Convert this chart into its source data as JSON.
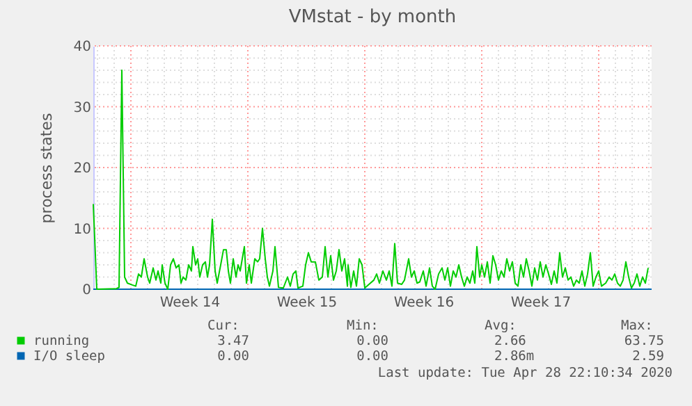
{
  "chart_data": {
    "type": "line",
    "title": "VMstat - by month",
    "ylabel": "process states",
    "xlim": [
      "2020-03-27T18:00",
      "2020-04-30T04:00"
    ],
    "ylim": [
      0,
      40
    ],
    "xticks": [
      {
        "value": "2020-03-28",
        "label": null
      },
      {
        "value": "2020-03-29",
        "label": null
      },
      {
        "value": "2020-03-31",
        "label": null
      },
      {
        "value": "2020-04-01",
        "label": null
      },
      {
        "value": "2020-04-02",
        "label": null
      },
      {
        "value": "2020-04-02T12:00",
        "label": "Week 14"
      },
      {
        "value": "2020-04-03",
        "label": null
      },
      {
        "value": "2020-04-04",
        "label": null
      },
      {
        "value": "2020-04-05",
        "label": null
      },
      {
        "value": "2020-04-07",
        "label": null
      },
      {
        "value": "2020-04-08",
        "label": null
      },
      {
        "value": "2020-04-09",
        "label": null
      },
      {
        "value": "2020-04-09T12:00",
        "label": "Week 15"
      },
      {
        "value": "2020-04-10",
        "label": null
      },
      {
        "value": "2020-04-11",
        "label": null
      },
      {
        "value": "2020-04-12",
        "label": null
      },
      {
        "value": "2020-04-14",
        "label": null
      },
      {
        "value": "2020-04-15",
        "label": null
      },
      {
        "value": "2020-04-16",
        "label": null
      },
      {
        "value": "2020-04-16T12:00",
        "label": "Week 16"
      },
      {
        "value": "2020-04-17",
        "label": null
      },
      {
        "value": "2020-04-18",
        "label": null
      },
      {
        "value": "2020-04-19",
        "label": null
      },
      {
        "value": "2020-04-21",
        "label": null
      },
      {
        "value": "2020-04-22",
        "label": null
      },
      {
        "value": "2020-04-23",
        "label": null
      },
      {
        "value": "2020-04-23T12:00",
        "label": "Week 17"
      },
      {
        "value": "2020-04-24",
        "label": null
      },
      {
        "value": "2020-04-25",
        "label": null
      },
      {
        "value": "2020-04-26",
        "label": null
      },
      {
        "value": "2020-04-28",
        "label": null
      },
      {
        "value": "2020-04-29",
        "label": null
      },
      {
        "value": "2020-04-30",
        "label": null
      }
    ],
    "yticks": [
      0,
      {
        "value": 2,
        "label": null
      },
      {
        "value": 4,
        "label": null
      },
      {
        "value": 6,
        "label": null
      },
      {
        "value": 8,
        "label": null
      },
      10,
      {
        "value": 12,
        "label": null
      },
      {
        "value": 14,
        "label": null
      },
      {
        "value": 16,
        "label": null
      },
      {
        "value": 18,
        "label": null
      },
      20,
      {
        "value": 22,
        "label": null
      },
      {
        "value": 24,
        "label": null
      },
      {
        "value": 26,
        "label": null
      },
      {
        "value": 28,
        "label": null
      },
      30,
      {
        "value": 32,
        "label": null
      },
      {
        "value": 34,
        "label": null
      },
      {
        "value": 36,
        "label": null
      },
      {
        "value": 38,
        "label": null
      },
      40
    ],
    "ref_lines": [
      {
        "axis": "x",
        "value": "2020-03-30",
        "color": "#ff9999",
        "line_style": "dotted"
      },
      {
        "axis": "x",
        "value": "2020-04-06",
        "color": "#ff9999",
        "line_style": "dotted"
      },
      {
        "axis": "x",
        "value": "2020-04-13",
        "color": "#ff9999",
        "line_style": "dotted"
      },
      {
        "axis": "x",
        "value": "2020-04-20",
        "color": "#ff9999",
        "line_style": "dotted"
      },
      {
        "axis": "x",
        "value": "2020-04-27",
        "color": "#ff9999",
        "line_style": "dotted"
      }
    ],
    "grid": true,
    "legend": "bottom",
    "marker": "none",
    "line_style": "solid",
    "series": [
      {
        "name": "running",
        "color": "#00cc00",
        "x": [
          "2020-03-27T18:00",
          "2020-03-27T23:00",
          "2020-03-29T03:00",
          "2020-03-29T07:00",
          "2020-03-29T11:00",
          "2020-03-29T15:00",
          "2020-03-29T19:00",
          "2020-03-30T02:00",
          "2020-03-30T07:00",
          "2020-03-30T11:00",
          "2020-03-30T15:00",
          "2020-03-30T19:00",
          "2020-03-31T00:00",
          "2020-03-31T03:00",
          "2020-03-31T08:00",
          "2020-03-31T12:00",
          "2020-03-31T15:00",
          "2020-03-31T19:00",
          "2020-03-31T21:00",
          "2020-04-01T01:00",
          "2020-04-01T05:00",
          "2020-04-01T09:00",
          "2020-04-01T13:00",
          "2020-04-01T17:00",
          "2020-04-01T21:00",
          "2020-04-02T00:00",
          "2020-04-02T03:00",
          "2020-04-02T07:00",
          "2020-04-02T11:00",
          "2020-04-02T15:00",
          "2020-04-02T17:00",
          "2020-04-02T21:00",
          "2020-04-03T00:00",
          "2020-04-03T03:00",
          "2020-04-03T07:00",
          "2020-04-03T11:00",
          "2020-04-03T14:00",
          "2020-04-03T17:00",
          "2020-04-03T21:00",
          "2020-04-04T01:00",
          "2020-04-04T04:00",
          "2020-04-04T09:00",
          "2020-04-04T13:00",
          "2020-04-04T17:00",
          "2020-04-04T20:00",
          "2020-04-04T23:00",
          "2020-04-05T03:00",
          "2020-04-05T07:00",
          "2020-04-05T10:00",
          "2020-04-05T13:00",
          "2020-04-05T19:00",
          "2020-04-05T22:00",
          "2020-04-06T02:00",
          "2020-04-06T05:00",
          "2020-04-06T10:00",
          "2020-04-06T14:00",
          "2020-04-06T17:00",
          "2020-04-06T21:00",
          "2020-04-07T01:00",
          "2020-04-07T04:00",
          "2020-04-07T07:00",
          "2020-04-07T12:00",
          "2020-04-07T15:00",
          "2020-04-07T20:00",
          "2020-04-08T03:00",
          "2020-04-08T09:00",
          "2020-04-08T13:00",
          "2020-04-08T17:00",
          "2020-04-08T21:00",
          "2020-04-09T00:00",
          "2020-04-09T07:00",
          "2020-04-09T11:00",
          "2020-04-09T15:00",
          "2020-04-09T19:00",
          "2020-04-10T01:00",
          "2020-04-10T06:00",
          "2020-04-10T11:00",
          "2020-04-10T15:00",
          "2020-04-10T19:00",
          "2020-04-10T23:00",
          "2020-04-11T03:00",
          "2020-04-11T07:00",
          "2020-04-11T11:00",
          "2020-04-11T15:00",
          "2020-04-11T19:00",
          "2020-04-11T23:00",
          "2020-04-12T00:00",
          "2020-04-12T04:00",
          "2020-04-12T08:00",
          "2020-04-12T12:00",
          "2020-04-12T16:00",
          "2020-04-12T20:00",
          "2020-04-13T00:00",
          "2020-04-13T06:00",
          "2020-04-13T13:00",
          "2020-04-13T17:00",
          "2020-04-13T21:00",
          "2020-04-14T02:00",
          "2020-04-14T07:00",
          "2020-04-14T11:00",
          "2020-04-14T15:00",
          "2020-04-14T19:00",
          "2020-04-14T23:00",
          "2020-04-15T05:00",
          "2020-04-15T09:00",
          "2020-04-15T15:00",
          "2020-04-15T19:00",
          "2020-04-15T23:00",
          "2020-04-16T03:00",
          "2020-04-16T07:00",
          "2020-04-16T12:00",
          "2020-04-16T16:00",
          "2020-04-16T21:00",
          "2020-04-17T01:00",
          "2020-04-17T05:00",
          "2020-04-17T10:00",
          "2020-04-17T15:00",
          "2020-04-17T19:00",
          "2020-04-17T23:00",
          "2020-04-18T03:00",
          "2020-04-18T07:00",
          "2020-04-18T11:00",
          "2020-04-18T15:00",
          "2020-04-18T19:00",
          "2020-04-18T23:00",
          "2020-04-19T03:00",
          "2020-04-19T07:00",
          "2020-04-19T11:00",
          "2020-04-19T14:00",
          "2020-04-19T17:00",
          "2020-04-19T21:00",
          "2020-04-20T00:00",
          "2020-04-20T04:00",
          "2020-04-20T08:00",
          "2020-04-20T12:00",
          "2020-04-20T16:00",
          "2020-04-20T20:00",
          "2020-04-21T00:00",
          "2020-04-21T04:00",
          "2020-04-21T08:00",
          "2020-04-21T12:00",
          "2020-04-21T16:00",
          "2020-04-21T20:00",
          "2020-04-22T00:00",
          "2020-04-22T04:00",
          "2020-04-22T08:00",
          "2020-04-22T12:00",
          "2020-04-22T16:00",
          "2020-04-22T20:00",
          "2020-04-23T00:00",
          "2020-04-23T04:00",
          "2020-04-23T08:00",
          "2020-04-23T12:00",
          "2020-04-23T16:00",
          "2020-04-23T20:00",
          "2020-04-24T00:00",
          "2020-04-24T04:00",
          "2020-04-24T08:00",
          "2020-04-24T12:00",
          "2020-04-24T16:00",
          "2020-04-24T20:00",
          "2020-04-25T00:00",
          "2020-04-25T04:00",
          "2020-04-25T08:00",
          "2020-04-25T12:00",
          "2020-04-25T16:00",
          "2020-04-25T20:00",
          "2020-04-26T00:00",
          "2020-04-26T04:00",
          "2020-04-26T08:00",
          "2020-04-26T12:00",
          "2020-04-26T16:00",
          "2020-04-26T20:00",
          "2020-04-27T00:00",
          "2020-04-27T04:00",
          "2020-04-27T10:00",
          "2020-04-27T15:00",
          "2020-04-27T19:00",
          "2020-04-27T23:00",
          "2020-04-28T03:00",
          "2020-04-28T07:00",
          "2020-04-28T11:00",
          "2020-04-28T15:00",
          "2020-04-28T19:00",
          "2020-04-28T23:00",
          "2020-04-29T03:00",
          "2020-04-29T07:00",
          "2020-04-29T11:00",
          "2020-04-29T15:00",
          "2020-04-29T19:00",
          "2020-04-29T23:00"
        ],
        "values": [
          14,
          0,
          0.1,
          0.3,
          36,
          2,
          1,
          0.7,
          0.5,
          2.5,
          2,
          5,
          2,
          1,
          3.5,
          1.5,
          3,
          1,
          4,
          1,
          0,
          4,
          5,
          3.5,
          4,
          1,
          2,
          1.5,
          4,
          3,
          7,
          4,
          5,
          2,
          4,
          4.5,
          2,
          4,
          11.5,
          3,
          1,
          4,
          6.5,
          6.5,
          3,
          1,
          5,
          2,
          4,
          3,
          7,
          1,
          4,
          1,
          5,
          4.5,
          5,
          10,
          5,
          2,
          0.5,
          3,
          7,
          0.3,
          0.2,
          2,
          0.5,
          2.5,
          3,
          0.2,
          0.5,
          4,
          6,
          4.5,
          4.5,
          1.5,
          2,
          7,
          2,
          5.5,
          1.5,
          3,
          6.5,
          3,
          5,
          0.5,
          4,
          0.3,
          3,
          0.5,
          5,
          4,
          0.2,
          0.8,
          1.5,
          2.5,
          1,
          3,
          1.5,
          3,
          0.5,
          7.5,
          1,
          0.8,
          1.5,
          5,
          2,
          3,
          1,
          1.2,
          3,
          0.5,
          3.5,
          0.5,
          0,
          2.5,
          3.5,
          1.5,
          3.5,
          0.5,
          3,
          2,
          4,
          2,
          0.5,
          2,
          1,
          3,
          1,
          7,
          2,
          4,
          2,
          4.5,
          1,
          5.5,
          4,
          1.5,
          3,
          2,
          5,
          3,
          4.5,
          1,
          0.5,
          4,
          2,
          5,
          3,
          0.5,
          3.5,
          1.5,
          4.5,
          2,
          4,
          2.5,
          0.8,
          3,
          1,
          6,
          2,
          3.5,
          1.5,
          2,
          0.5,
          1.5,
          1,
          3,
          0.5,
          2.5,
          6,
          0.5,
          2,
          3,
          0.5,
          1,
          2,
          1.5,
          2.5,
          1,
          0.5,
          1.5,
          4.5,
          2,
          0.2,
          1,
          2.5,
          0.5,
          2,
          1,
          3.5
        ]
      },
      {
        "name": "I/O sleep",
        "color": "#0066b3",
        "x": [
          "2020-03-27T18:00",
          "2020-04-30T04:00"
        ],
        "values": [
          0,
          0
        ]
      }
    ],
    "annotations": [
      "Cur:",
      "Min:",
      "Avg:",
      "Max:",
      "3.47",
      "0.00",
      "2.66",
      "63.75",
      "0.00",
      "0.00",
      "2.86m",
      "2.59",
      "Last update: Tue Apr 28 22:10:34 2020"
    ]
  }
}
